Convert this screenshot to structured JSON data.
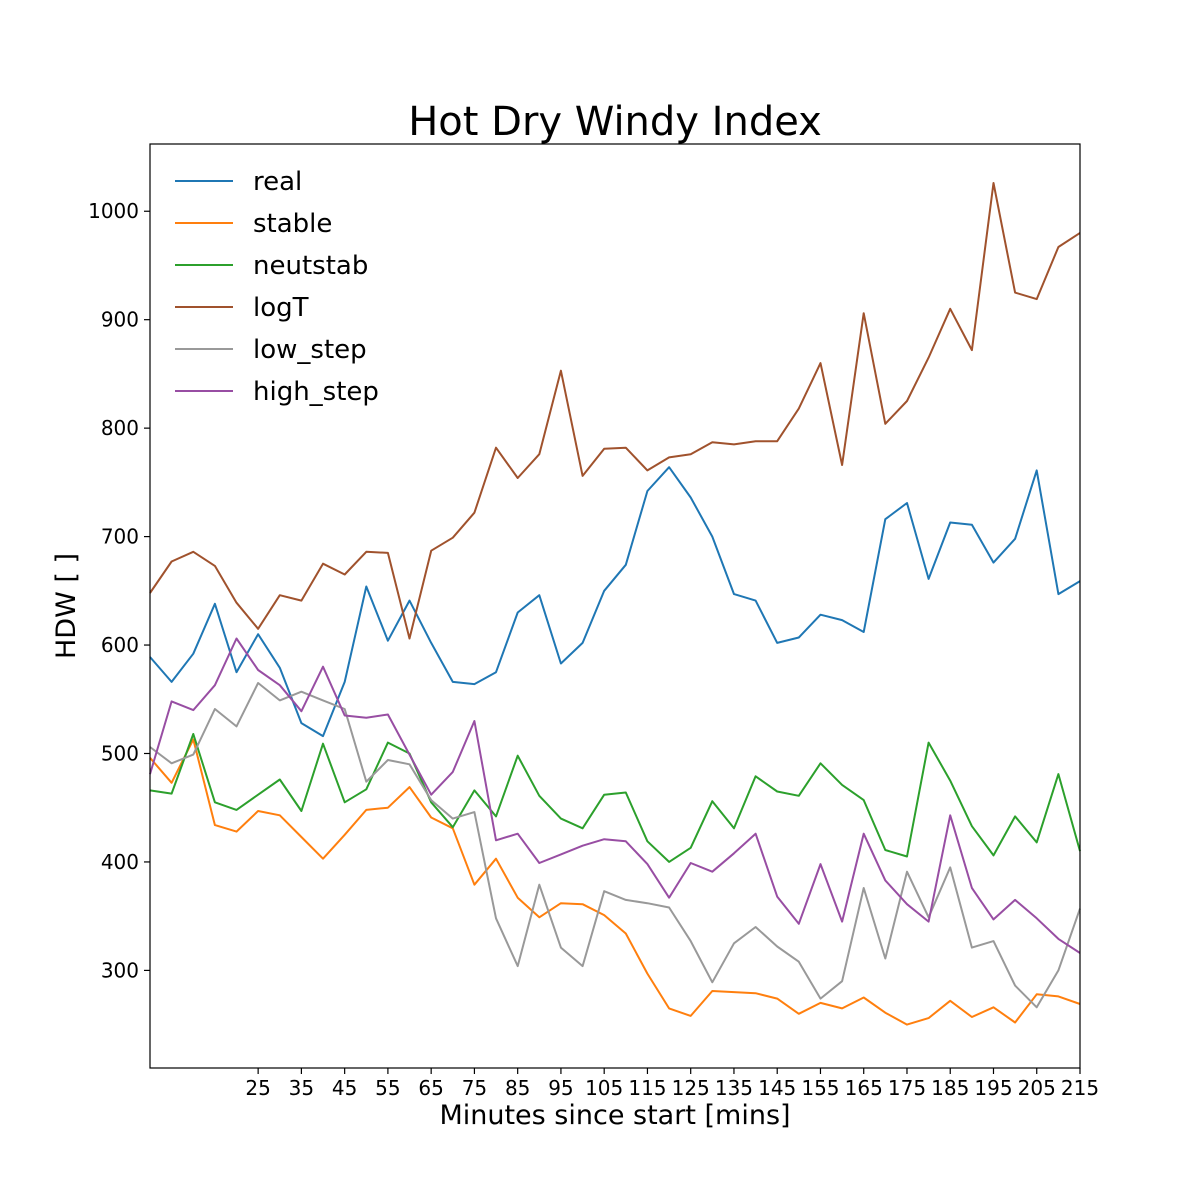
{
  "chart_data": {
    "type": "line",
    "title": "Hot Dry Windy Index",
    "xlabel": "Minutes since start [mins]",
    "ylabel": "HDW [ ]",
    "xlim": [
      0,
      215
    ],
    "ylim": [
      210,
      1062
    ],
    "x_ticks": [
      25,
      35,
      45,
      55,
      65,
      75,
      85,
      95,
      105,
      115,
      125,
      135,
      145,
      155,
      165,
      175,
      185,
      195,
      205,
      215
    ],
    "y_ticks": [
      300,
      400,
      500,
      600,
      700,
      800,
      900,
      1000
    ],
    "legend_position": "upper-left",
    "grid": false,
    "x": [
      0,
      5,
      10,
      15,
      20,
      25,
      30,
      35,
      40,
      45,
      50,
      55,
      60,
      65,
      70,
      75,
      80,
      85,
      90,
      95,
      100,
      105,
      110,
      115,
      120,
      125,
      130,
      135,
      140,
      145,
      150,
      155,
      160,
      165,
      170,
      175,
      180,
      185,
      190,
      195,
      200,
      205,
      210,
      215
    ],
    "series": [
      {
        "name": "real",
        "color": "#1f77b4",
        "values": [
          589,
          566,
          592,
          638,
          575,
          610,
          579,
          528,
          516,
          566,
          654,
          604,
          641,
          602,
          566,
          564,
          575,
          630,
          646,
          583,
          602,
          650,
          674,
          742,
          764,
          736,
          700,
          647,
          641,
          602,
          607,
          628,
          623,
          612,
          716,
          731,
          661,
          713,
          711,
          676,
          698,
          761,
          647,
          659
        ]
      },
      {
        "name": "stable",
        "color": "#ff7f0e",
        "values": [
          496,
          473,
          513,
          434,
          428,
          447,
          443,
          423,
          403,
          425,
          448,
          450,
          469,
          441,
          431,
          379,
          403,
          367,
          349,
          362,
          361,
          351,
          334,
          297,
          265,
          258,
          281,
          280,
          279,
          274,
          260,
          270,
          265,
          275,
          261,
          250,
          256,
          272,
          257,
          266,
          252,
          278,
          276,
          269
        ]
      },
      {
        "name": "neutstab",
        "color": "#2ca02c",
        "values": [
          466,
          463,
          518,
          455,
          448,
          462,
          476,
          447,
          509,
          455,
          467,
          510,
          500,
          455,
          432,
          466,
          442,
          498,
          461,
          440,
          431,
          462,
          464,
          419,
          400,
          413,
          456,
          431,
          479,
          465,
          461,
          491,
          471,
          457,
          411,
          405,
          510,
          475,
          433,
          406,
          442,
          418,
          481,
          410
        ]
      },
      {
        "name": "logT",
        "color": "#a0522d",
        "values": [
          648,
          677,
          686,
          673,
          639,
          615,
          646,
          641,
          675,
          665,
          686,
          685,
          606,
          687,
          699,
          722,
          782,
          754,
          776,
          853,
          756,
          781,
          782,
          761,
          773,
          776,
          787,
          785,
          788,
          788,
          818,
          860,
          766,
          906,
          804,
          825,
          865,
          910,
          872,
          1026,
          925,
          919,
          967,
          980
        ]
      },
      {
        "name": "low_step",
        "color": "#999999",
        "values": [
          506,
          491,
          499,
          541,
          525,
          565,
          549,
          557,
          549,
          541,
          474,
          494,
          490,
          457,
          440,
          446,
          348,
          304,
          379,
          321,
          304,
          373,
          365,
          362,
          358,
          327,
          289,
          325,
          340,
          322,
          308,
          274,
          290,
          376,
          311,
          391,
          349,
          395,
          321,
          327,
          286,
          266,
          300,
          357
        ]
      },
      {
        "name": "high_step",
        "color": "#984ea3",
        "values": [
          481,
          548,
          540,
          563,
          606,
          577,
          563,
          539,
          580,
          535,
          533,
          536,
          499,
          462,
          483,
          530,
          420,
          426,
          399,
          407,
          415,
          421,
          419,
          398,
          367,
          399,
          391,
          408,
          426,
          368,
          343,
          398,
          345,
          426,
          383,
          361,
          345,
          443,
          376,
          347,
          365,
          348,
          329,
          316
        ]
      }
    ]
  }
}
